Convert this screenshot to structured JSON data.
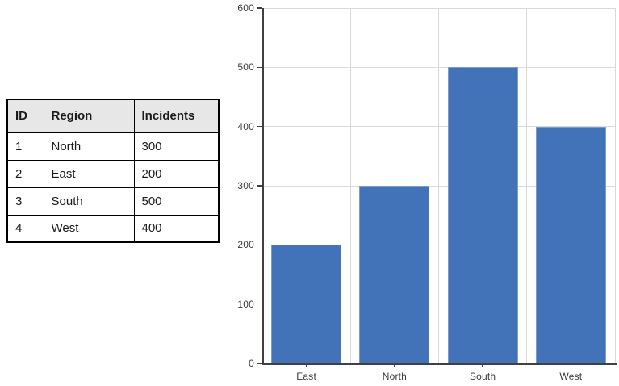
{
  "table": {
    "headers": [
      "ID",
      "Region",
      "Incidents"
    ],
    "rows": [
      [
        "1",
        "North",
        "300"
      ],
      [
        "2",
        "East",
        "200"
      ],
      [
        "3",
        "South",
        "500"
      ],
      [
        "4",
        "West",
        "400"
      ]
    ],
    "header_bg": "#e7e7e7",
    "border_color": "#000000"
  },
  "chart_data": {
    "type": "bar",
    "categories": [
      "East",
      "North",
      "South",
      "West"
    ],
    "values": [
      200,
      300,
      500,
      400
    ],
    "title": "",
    "xlabel": "",
    "ylabel": "",
    "ylim": [
      0,
      600
    ],
    "ytick_step": 100,
    "ytick_labels": [
      "0",
      "100",
      "200",
      "300",
      "400",
      "500",
      "600"
    ],
    "grid": true,
    "legend": "none",
    "colors": {
      "bar": "#4273b8",
      "bar_edge": "#7b9bd0",
      "gridline": "#d9d9d9",
      "axis": "#404040",
      "tick_label": "#3b3b3b"
    }
  }
}
